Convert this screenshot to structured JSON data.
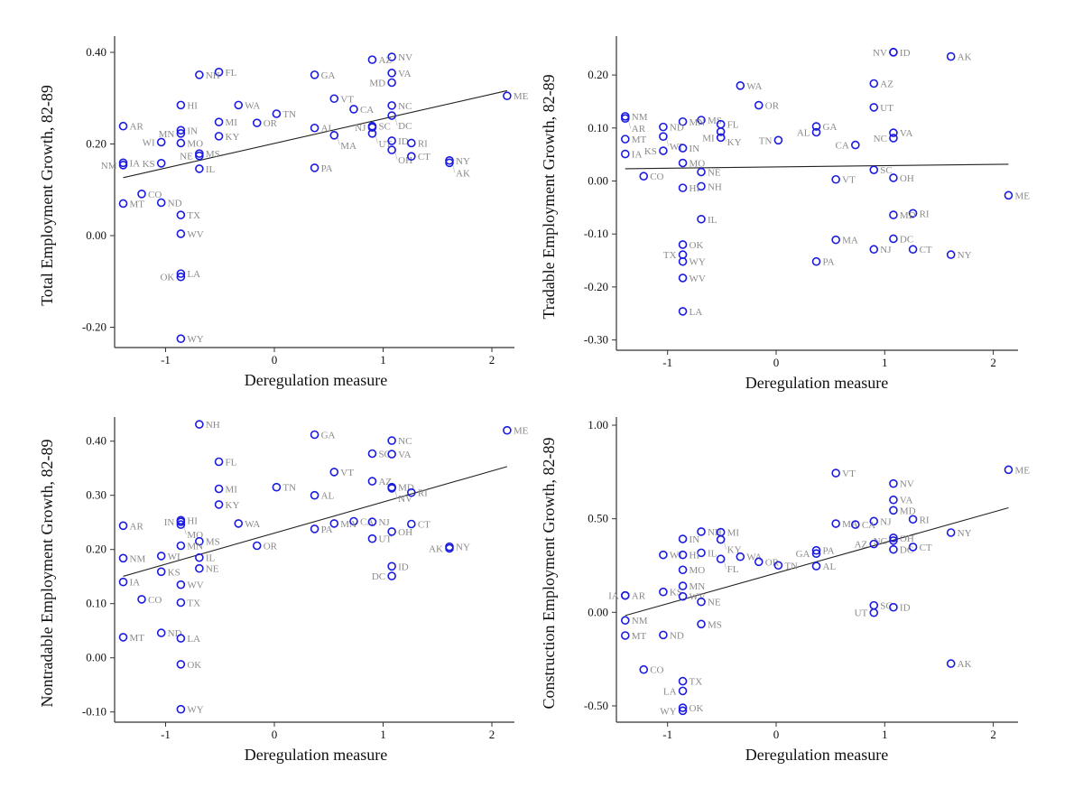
{
  "chart_data": [
    {
      "type": "scatter",
      "title": "",
      "xlabel": "Deregulation measure",
      "ylabel": "Total Employment Growth, 82-89",
      "xticks": [
        "-1",
        "0",
        "1",
        "2"
      ],
      "yticks": [
        "0.40",
        "0.20",
        "0.00",
        "-0.20"
      ],
      "fit_line": true,
      "labels": [
        "AL",
        "AK",
        "AZ",
        "AR",
        "CA",
        "CO",
        "CT",
        "DC",
        "FL",
        "GA",
        "HI",
        "ID",
        "IL",
        "IN",
        "IA",
        "KS",
        "KY",
        "LA",
        "ME",
        "MD",
        "MA",
        "MI",
        "MN",
        "MS",
        "MO",
        "MT",
        "NE",
        "NV",
        "NH",
        "NJ",
        "NM",
        "NY",
        "NC",
        "ND",
        "OH",
        "OK",
        "OR",
        "PA",
        "RI",
        "SC",
        "TN",
        "TX",
        "UT",
        "VT",
        "VA",
        "WA",
        "WV",
        "WI",
        "WY"
      ],
      "x": [
        0.37,
        1.61,
        0.9,
        -1.39,
        0.73,
        -1.22,
        1.26,
        1.08,
        -0.51,
        0.37,
        -0.86,
        1.08,
        -0.69,
        -0.86,
        -1.39,
        -1.04,
        -0.51,
        -0.86,
        2.14,
        1.08,
        0.55,
        -0.51,
        -0.86,
        -0.69,
        -0.86,
        -1.39,
        -0.69,
        1.08,
        -0.69,
        0.9,
        -1.39,
        1.61,
        1.08,
        -1.04,
        1.08,
        -0.86,
        -0.16,
        0.37,
        1.26,
        0.9,
        0.02,
        -0.86,
        0.9,
        0.55,
        1.08,
        -0.33,
        -0.86,
        -1.04,
        -0.86
      ],
      "y": [
        0.235,
        0.159,
        0.384,
        0.239,
        0.276,
        0.091,
        0.173,
        0.262,
        0.357,
        0.351,
        0.285,
        0.207,
        0.146,
        0.23,
        0.159,
        0.158,
        0.217,
        -0.083,
        0.305,
        0.334,
        0.219,
        0.248,
        0.223,
        0.179,
        0.202,
        0.07,
        0.174,
        0.39,
        0.351,
        0.236,
        0.154,
        0.164,
        0.284,
        0.072,
        0.187,
        -0.09,
        0.246,
        0.148,
        0.202,
        0.239,
        0.266,
        0.045,
        0.223,
        0.299,
        0.355,
        0.285,
        0.004,
        0.204,
        -0.225
      ]
    },
    {
      "type": "scatter",
      "title": "",
      "xlabel": "Deregulation measure",
      "ylabel": "Tradable Employment Growth, 82-89",
      "xticks": [
        "-1",
        "0",
        "1",
        "2"
      ],
      "yticks": [
        "0.20",
        "0.10",
        "0.00",
        "-0.10",
        "-0.20",
        "-0.30"
      ],
      "fit_line": true,
      "labels": [
        "AL",
        "AK",
        "AZ",
        "AR",
        "CA",
        "CO",
        "CT",
        "DC",
        "FL",
        "GA",
        "HI",
        "ID",
        "IL",
        "IN",
        "IA",
        "KS",
        "KY",
        "LA",
        "ME",
        "MD",
        "MA",
        "MI",
        "MN",
        "MS",
        "MO",
        "MT",
        "NE",
        "NV",
        "NH",
        "NJ",
        "NM",
        "NY",
        "NC",
        "ND",
        "OH",
        "OK",
        "OR",
        "PA",
        "RI",
        "SC",
        "TN",
        "TX",
        "UT",
        "VT",
        "VA",
        "WA",
        "WV",
        "WI",
        "WY"
      ],
      "x": [
        0.37,
        1.61,
        0.9,
        -1.39,
        0.73,
        -1.22,
        1.26,
        1.08,
        -0.51,
        0.37,
        -0.86,
        1.08,
        -0.69,
        -0.86,
        -1.39,
        -1.04,
        -0.51,
        -0.86,
        2.14,
        1.08,
        0.55,
        -0.51,
        -0.86,
        -0.69,
        -0.86,
        -1.39,
        -0.69,
        1.08,
        -0.69,
        0.9,
        -1.39,
        1.61,
        1.08,
        -1.04,
        1.08,
        -0.86,
        -0.16,
        0.37,
        1.26,
        0.9,
        0.02,
        -0.86,
        0.9,
        0.55,
        1.08,
        -0.33,
        -0.86,
        -1.04,
        -0.86
      ],
      "y": [
        0.092,
        0.235,
        0.184,
        0.118,
        0.068,
        0.009,
        -0.129,
        -0.109,
        0.107,
        0.103,
        -0.013,
        0.243,
        -0.072,
        0.062,
        0.051,
        0.057,
        0.093,
        -0.246,
        -0.027,
        -0.064,
        -0.111,
        0.082,
        0.112,
        0.115,
        0.034,
        0.079,
        0.017,
        0.243,
        -0.01,
        -0.129,
        0.122,
        -0.139,
        0.081,
        0.102,
        0.006,
        -0.12,
        0.143,
        -0.152,
        -0.061,
        0.021,
        0.077,
        -0.139,
        0.139,
        0.003,
        0.091,
        0.18,
        -0.183,
        0.084,
        -0.152
      ]
    },
    {
      "type": "scatter",
      "title": "",
      "xlabel": "Deregulation measure",
      "ylabel": "Nontradable Employment Growth, 82-89",
      "xticks": [
        "-1",
        "0",
        "1",
        "2"
      ],
      "yticks": [
        "0.40",
        "0.30",
        "0.20",
        "0.10",
        "0.00",
        "-0.10"
      ],
      "fit_line": true,
      "labels": [
        "AL",
        "AK",
        "AZ",
        "AR",
        "CA",
        "CO",
        "CT",
        "DC",
        "FL",
        "GA",
        "HI",
        "ID",
        "IL",
        "IN",
        "IA",
        "KS",
        "KY",
        "LA",
        "ME",
        "MD",
        "MA",
        "MI",
        "MN",
        "MS",
        "MO",
        "MT",
        "NE",
        "NV",
        "NH",
        "NJ",
        "NM",
        "NY",
        "NC",
        "ND",
        "OH",
        "OK",
        "OR",
        "PA",
        "RI",
        "SC",
        "TN",
        "TX",
        "UT",
        "VT",
        "VA",
        "WA",
        "WV",
        "WI",
        "WY"
      ],
      "x": [
        0.37,
        1.61,
        0.9,
        -1.39,
        0.73,
        -1.22,
        1.26,
        1.08,
        -0.51,
        0.37,
        -0.86,
        1.08,
        -0.69,
        -0.86,
        -1.39,
        -1.04,
        -0.51,
        -0.86,
        2.14,
        1.08,
        0.55,
        -0.51,
        -0.86,
        -0.69,
        -0.86,
        -1.39,
        -0.69,
        1.08,
        -0.69,
        0.9,
        -1.39,
        1.61,
        1.08,
        -1.04,
        1.08,
        -0.86,
        -0.16,
        0.37,
        1.26,
        0.9,
        0.02,
        -0.86,
        0.9,
        0.55,
        1.08,
        -0.33,
        -0.86,
        -1.04,
        -0.86
      ],
      "y": [
        0.3,
        0.202,
        0.326,
        0.244,
        0.252,
        0.108,
        0.247,
        0.151,
        0.362,
        0.412,
        0.254,
        0.169,
        0.185,
        0.251,
        0.14,
        0.159,
        0.283,
        0.036,
        0.42,
        0.315,
        0.248,
        0.312,
        0.207,
        0.215,
        0.246,
        0.038,
        0.165,
        0.313,
        0.431,
        0.251,
        0.184,
        0.205,
        0.401,
        0.046,
        0.233,
        -0.012,
        0.207,
        0.238,
        0.305,
        0.377,
        0.315,
        0.102,
        0.22,
        0.343,
        0.376,
        0.248,
        0.135,
        0.188,
        -0.095
      ]
    },
    {
      "type": "scatter",
      "title": "",
      "xlabel": "Deregulation measure",
      "ylabel": "Construction Employment Growth, 82-89",
      "xticks": [
        "-1",
        "0",
        "1",
        "2"
      ],
      "yticks": [
        "1.00",
        "0.50",
        "0.00",
        "-0.50"
      ],
      "fit_line": true,
      "labels": [
        "AL",
        "AK",
        "AZ",
        "AR",
        "CA",
        "CO",
        "CT",
        "DC",
        "FL",
        "GA",
        "HI",
        "ID",
        "IL",
        "IN",
        "IA",
        "KS",
        "KY",
        "LA",
        "ME",
        "MD",
        "MA",
        "MI",
        "MN",
        "MS",
        "MO",
        "MT",
        "NE",
        "NV",
        "NH",
        "NJ",
        "NM",
        "NY",
        "NC",
        "ND",
        "OH",
        "OK",
        "OR",
        "PA",
        "RI",
        "SC",
        "TN",
        "TX",
        "UT",
        "VT",
        "VA",
        "WA",
        "WV",
        "WI",
        "WY"
      ],
      "x": [
        0.37,
        1.61,
        0.9,
        -1.39,
        0.73,
        -1.22,
        1.26,
        1.08,
        -0.51,
        0.37,
        -0.86,
        1.08,
        -0.69,
        -0.86,
        -1.39,
        -1.04,
        -0.51,
        -0.86,
        2.14,
        1.08,
        0.55,
        -0.51,
        -0.86,
        -0.69,
        -0.86,
        -1.39,
        -0.69,
        1.08,
        -0.69,
        0.9,
        -1.39,
        1.61,
        1.08,
        -1.04,
        1.08,
        -0.86,
        -0.16,
        0.37,
        1.26,
        0.9,
        0.02,
        -0.86,
        0.9,
        0.55,
        1.08,
        -0.33,
        -0.86,
        -1.04,
        -0.86
      ],
      "y": [
        0.247,
        -0.274,
        0.365,
        0.09,
        0.469,
        -0.306,
        0.349,
        0.336,
        0.285,
        0.314,
        0.307,
        0.027,
        0.318,
        0.392,
        0.09,
        0.109,
        0.389,
        -0.42,
        0.762,
        0.545,
        0.474,
        0.428,
        0.141,
        -0.063,
        0.227,
        -0.124,
        0.056,
        0.688,
        0.431,
        0.487,
        -0.043,
        0.426,
        0.383,
        -0.121,
        0.398,
        -0.51,
        0.27,
        0.331,
        0.497,
        0.037,
        0.251,
        -0.368,
        -0.002,
        0.744,
        0.601,
        0.297,
        0.085,
        0.307,
        -0.526
      ]
    }
  ]
}
